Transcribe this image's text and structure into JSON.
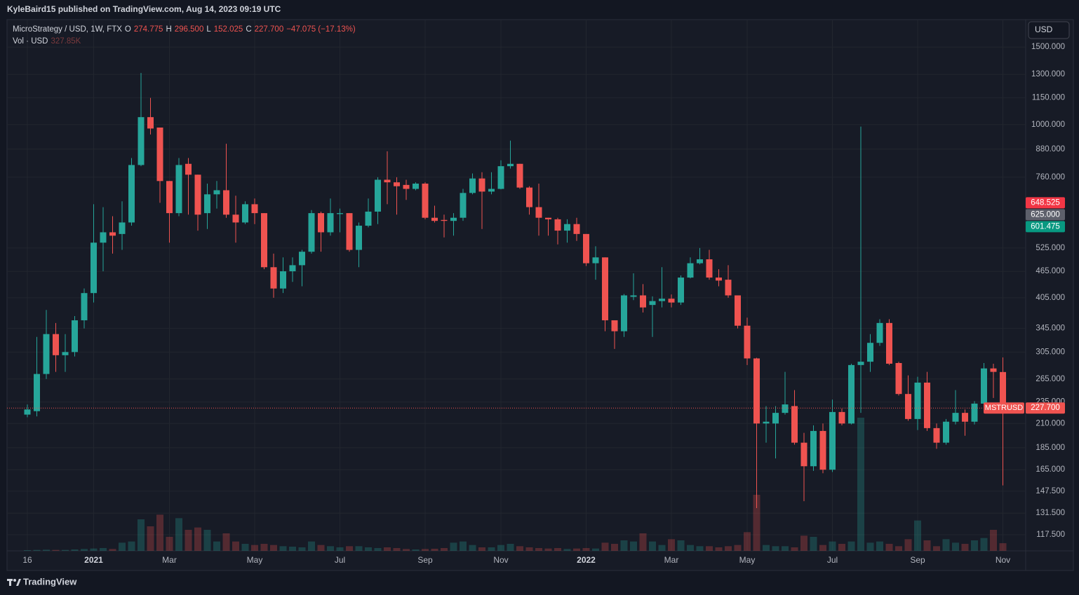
{
  "header": "KyleBaird15 published on TradingView.com, Aug 14, 2023 09:19 UTC",
  "footer": "TradingView",
  "chart_data": {
    "type": "candlestick",
    "legend": {
      "symbol": "MicroStrategy / USD, 1W, FTX",
      "fields": [
        {
          "key": "O",
          "label": "274.775"
        },
        {
          "key": "H",
          "label": "296.500"
        },
        {
          "key": "L",
          "label": "152.025"
        },
        {
          "key": "C",
          "label": "227.700"
        }
      ],
      "change": "−47.075 (−17.13%)",
      "volume_title": "Vol · USD",
      "volume_label": "327.85K"
    },
    "currency_button": "USD",
    "symbol_tag": "MSTRUSD",
    "last_price_label": "227.700",
    "colors": {
      "up": "#26a69a",
      "down": "#ef5350"
    },
    "log_y": true,
    "grid": true,
    "categories": [
      "16",
      null,
      null,
      null,
      null,
      null,
      null,
      "2021",
      null,
      null,
      null,
      null,
      null,
      null,
      null,
      "Mar",
      null,
      null,
      null,
      null,
      null,
      null,
      null,
      null,
      "May",
      null,
      null,
      null,
      null,
      null,
      null,
      null,
      null,
      "Jul",
      null,
      null,
      null,
      null,
      null,
      null,
      null,
      null,
      "Sep",
      null,
      null,
      null,
      null,
      null,
      null,
      null,
      "Nov",
      null,
      null,
      null,
      null,
      null,
      null,
      null,
      null,
      "2022",
      null,
      null,
      null,
      null,
      null,
      null,
      null,
      null,
      "Mar",
      null,
      null,
      null,
      null,
      null,
      null,
      null,
      "May",
      null,
      null,
      null,
      null,
      null,
      null,
      null,
      null,
      "Jul",
      null,
      null,
      null,
      null,
      null,
      null,
      null,
      null,
      "Sep",
      null,
      null,
      null,
      null,
      null,
      null,
      null,
      null,
      "Nov"
    ],
    "open": [
      220,
      224,
      272,
      335,
      300,
      305,
      360,
      415,
      540,
      570,
      565,
      600,
      810,
      1040,
      985,
      745,
      630,
      815,
      770,
      630,
      695,
      710,
      625,
      600,
      660,
      630,
      475,
      425,
      465,
      480,
      515,
      630,
      570,
      627,
      630,
      520,
      590,
      635,
      750,
      740,
      730,
      715,
      735,
      615,
      608,
      605,
      615,
      700,
      755,
      705,
      715,
      805,
      815,
      720,
      650,
      615,
      610,
      575,
      595,
      565,
      485,
      500,
      360,
      340,
      407,
      410,
      390,
      398,
      403,
      395,
      450,
      485,
      495,
      450,
      445,
      410,
      350,
      295,
      210,
      210,
      222,
      230,
      190,
      168,
      202,
      165,
      223,
      210,
      285,
      290,
      320,
      355,
      288,
      245,
      215,
      260,
      205,
      190,
      212,
      222,
      212,
      233,
      280,
      274.775
    ],
    "high": [
      232,
      330,
      380,
      355,
      335,
      368,
      425,
      660,
      650,
      620,
      670,
      840,
      1310,
      1150,
      985,
      745,
      840,
      840,
      770,
      735,
      745,
      905,
      690,
      670,
      680,
      630,
      510,
      500,
      500,
      520,
      640,
      635,
      680,
      645,
      630,
      600,
      680,
      760,
      870,
      760,
      750,
      740,
      740,
      655,
      625,
      630,
      715,
      775,
      780,
      780,
      830,
      920,
      815,
      725,
      735,
      615,
      615,
      610,
      615,
      565,
      530,
      500,
      360,
      413,
      460,
      435,
      408,
      475,
      412,
      455,
      500,
      525,
      520,
      470,
      480,
      410,
      365,
      296,
      230,
      230,
      275,
      250,
      200,
      208,
      210,
      238,
      227,
      287,
      990,
      335,
      362,
      362,
      290,
      270,
      268,
      275,
      210,
      215,
      250,
      226,
      236,
      288,
      287,
      296.5
    ],
    "low": [
      217,
      218,
      265,
      275,
      275,
      298,
      345,
      395,
      465,
      510,
      520,
      590,
      805,
      950,
      665,
      540,
      620,
      625,
      575,
      580,
      645,
      615,
      540,
      595,
      595,
      470,
      405,
      415,
      440,
      430,
      510,
      515,
      560,
      570,
      515,
      475,
      585,
      595,
      660,
      625,
      675,
      710,
      610,
      600,
      555,
      560,
      605,
      695,
      580,
      695,
      713,
      795,
      715,
      625,
      560,
      560,
      535,
      540,
      545,
      478,
      445,
      340,
      310,
      330,
      400,
      375,
      330,
      385,
      385,
      390,
      448,
      482,
      445,
      430,
      405,
      345,
      285,
      135,
      190,
      175,
      220,
      188,
      140,
      164,
      162,
      163,
      208,
      209,
      222,
      275,
      315,
      285,
      243,
      213,
      203,
      202,
      184,
      188,
      209,
      197,
      209,
      230,
      240,
      152.025
    ],
    "close": [
      226,
      272,
      335,
      300,
      305,
      360,
      415,
      540,
      570,
      560,
      600,
      810,
      1040,
      980,
      745,
      630,
      810,
      770,
      625,
      695,
      710,
      625,
      600,
      660,
      630,
      475,
      425,
      465,
      480,
      515,
      630,
      570,
      630,
      630,
      520,
      590,
      635,
      750,
      740,
      725,
      715,
      735,
      615,
      605,
      605,
      615,
      700,
      755,
      705,
      715,
      805,
      815,
      720,
      650,
      615,
      610,
      575,
      595,
      565,
      485,
      500,
      360,
      340,
      410,
      410,
      385,
      398,
      403,
      395,
      450,
      485,
      495,
      450,
      443,
      410,
      350,
      295,
      210,
      212,
      222,
      232,
      190,
      168,
      202,
      165,
      223,
      210,
      285,
      290,
      320,
      355,
      287,
      245,
      215,
      260,
      205,
      190,
      212,
      222,
      212,
      233,
      280,
      275,
      227.7
    ],
    "volume": [
      30000,
      40000,
      50000,
      40000,
      40000,
      60000,
      80000,
      100000,
      120000,
      80000,
      350000,
      400000,
      1350000,
      1050000,
      1550000,
      600000,
      1400000,
      900000,
      1000000,
      900000,
      400000,
      750000,
      400000,
      300000,
      250000,
      300000,
      250000,
      200000,
      180000,
      150000,
      400000,
      250000,
      200000,
      150000,
      200000,
      200000,
      150000,
      120000,
      150000,
      120000,
      80000,
      60000,
      80000,
      90000,
      120000,
      350000,
      400000,
      250000,
      150000,
      150000,
      250000,
      300000,
      200000,
      150000,
      120000,
      100000,
      120000,
      80000,
      100000,
      120000,
      100000,
      350000,
      300000,
      450000,
      400000,
      750000,
      400000,
      250000,
      500000,
      450000,
      250000,
      200000,
      200000,
      150000,
      200000,
      250000,
      800000,
      2400000,
      250000,
      200000,
      200000,
      150000,
      650000,
      600000,
      250000,
      400000,
      300000,
      400000,
      5700000,
      350000,
      400000,
      300000,
      200000,
      500000,
      1300000,
      450000,
      200000,
      500000,
      350000,
      300000,
      450000,
      550000,
      900000,
      327850
    ],
    "ylim": [
      108,
      1718
    ],
    "yticks": [
      {
        "value": 117.5,
        "label": "117.500"
      },
      {
        "value": 131.5,
        "label": "131.500"
      },
      {
        "value": 147.5,
        "label": "147.500"
      },
      {
        "value": 165,
        "label": "165.000"
      },
      {
        "value": 185,
        "label": "185.000"
      },
      {
        "value": 210,
        "label": "210.000"
      },
      {
        "value": 235,
        "label": "235.000"
      },
      {
        "value": 265,
        "label": "265.000"
      },
      {
        "value": 305,
        "label": "305.000"
      },
      {
        "value": 345,
        "label": "345.000"
      },
      {
        "value": 405,
        "label": "405.000"
      },
      {
        "value": 465,
        "label": "465.000"
      },
      {
        "value": 525,
        "label": "525.000"
      },
      {
        "value": 760,
        "label": "760.000"
      },
      {
        "value": 880,
        "label": "880.000"
      },
      {
        "value": 1000,
        "label": "1000.000"
      },
      {
        "value": 1150,
        "label": "1150.000"
      },
      {
        "value": 1300,
        "label": "1300.000"
      },
      {
        "value": 1500,
        "label": "1500.000"
      }
    ],
    "price_labels": [
      {
        "value": 648.525,
        "label": "648.525",
        "color": "#f23645"
      },
      {
        "value": 625,
        "label": "625.000",
        "color": "#5d606b"
      },
      {
        "value": 601.475,
        "label": "601.475",
        "color": "#089981"
      }
    ]
  }
}
